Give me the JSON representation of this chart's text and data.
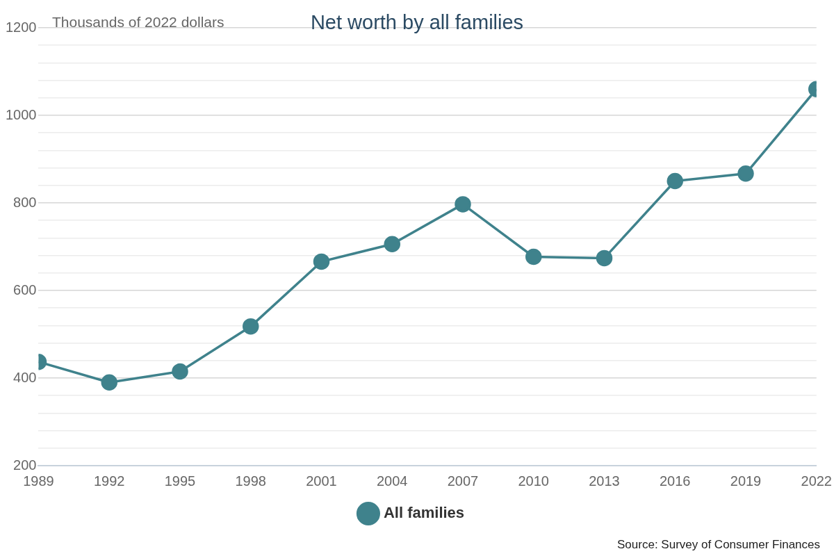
{
  "chart_data": {
    "type": "line",
    "title": "Net worth by all families",
    "ylabel": "Thousands of 2022 dollars",
    "x": [
      1989,
      1992,
      1995,
      1998,
      2001,
      2004,
      2007,
      2010,
      2013,
      2016,
      2019,
      2022
    ],
    "series": [
      {
        "name": "All families",
        "color": "#3f828c",
        "values": [
          437,
          390,
          415,
          518,
          666,
          706,
          797,
          677,
          674,
          850,
          867,
          1060
        ]
      }
    ],
    "xlim": [
      1989,
      2022
    ],
    "xticks": [
      1989,
      1992,
      1995,
      1998,
      2001,
      2004,
      2007,
      2010,
      2013,
      2016,
      2019,
      2022
    ],
    "ylim": [
      200,
      1200
    ],
    "yticks": [
      200,
      {
        "value": 240,
        "label": null
      },
      {
        "value": 280,
        "label": null
      },
      {
        "value": 320,
        "label": null
      },
      {
        "value": 360,
        "label": null
      },
      400,
      {
        "value": 440,
        "label": null
      },
      {
        "value": 480,
        "label": null
      },
      {
        "value": 520,
        "label": null
      },
      {
        "value": 560,
        "label": null
      },
      600,
      {
        "value": 640,
        "label": null
      },
      {
        "value": 680,
        "label": null
      },
      {
        "value": 720,
        "label": null
      },
      {
        "value": 760,
        "label": null
      },
      800,
      {
        "value": 840,
        "label": null
      },
      {
        "value": 880,
        "label": null
      },
      {
        "value": 920,
        "label": null
      },
      {
        "value": 960,
        "label": null
      },
      1000,
      {
        "value": 1040,
        "label": null
      },
      {
        "value": 1080,
        "label": null
      },
      {
        "value": 1120,
        "label": null
      },
      {
        "value": 1160,
        "label": null
      },
      1200
    ],
    "grid": "y",
    "legend": "bottom",
    "marker": "circle",
    "line_style": "solid",
    "annotations": [
      "Source: Survey of Consumer Finances"
    ]
  }
}
